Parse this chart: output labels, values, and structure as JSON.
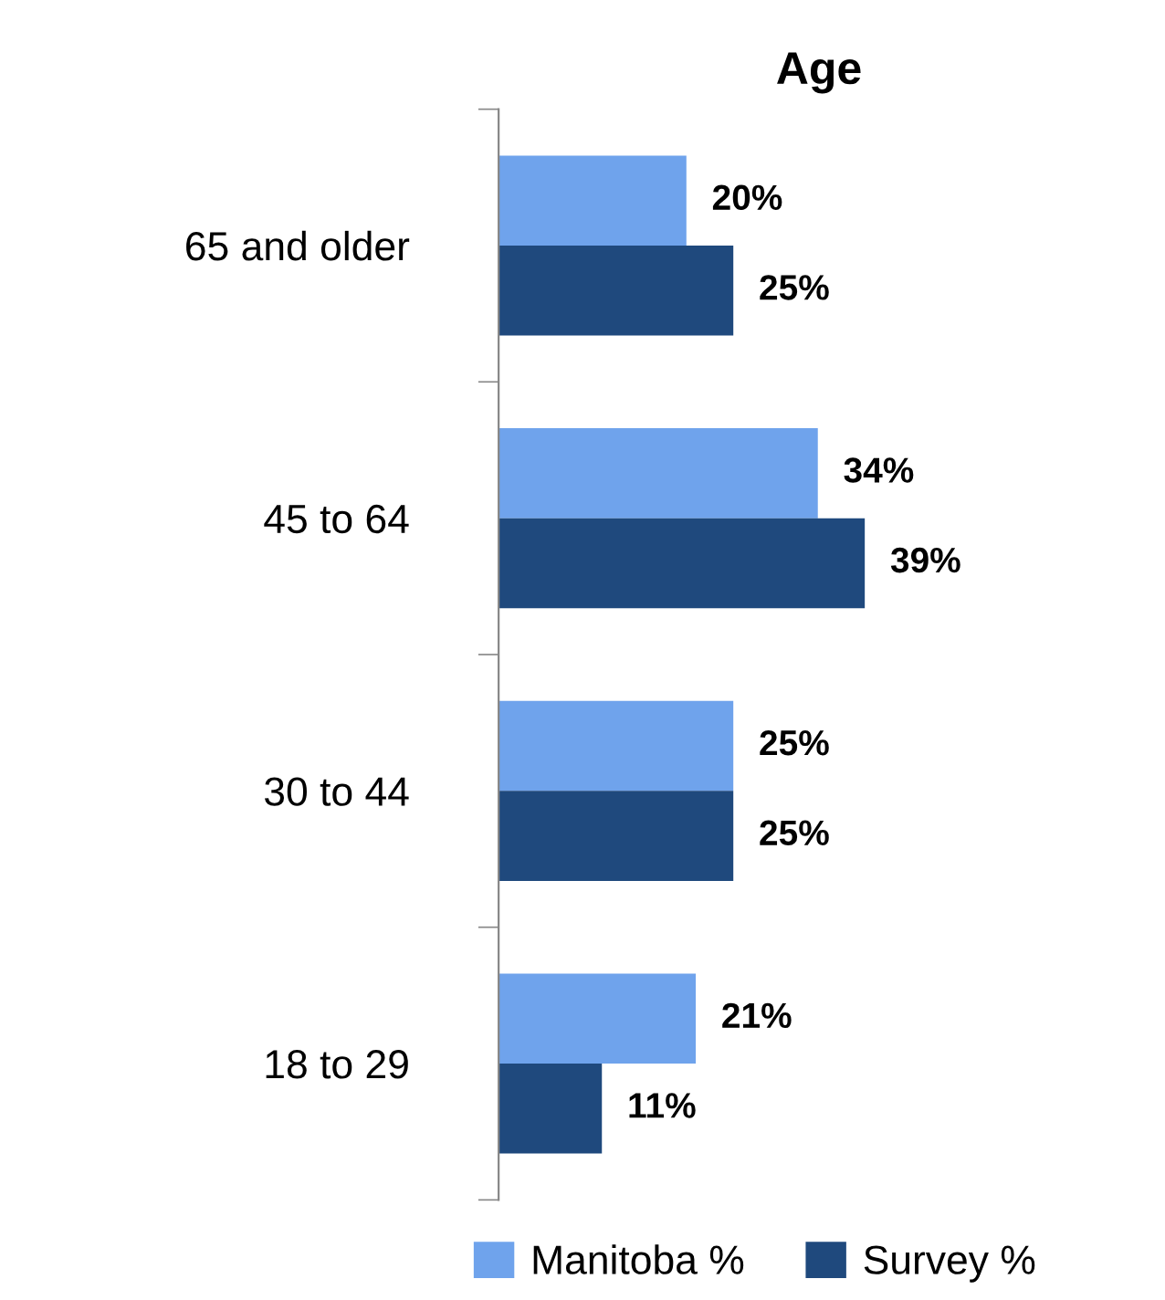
{
  "chart_data": {
    "type": "bar",
    "orientation": "horizontal",
    "title": "Age",
    "categories": [
      "65 and older",
      "45 to 64",
      "30 to 44",
      "18 to 29"
    ],
    "series": [
      {
        "name": "Manitoba %",
        "color": "#6fa3ec",
        "values": [
          20,
          34,
          25,
          21
        ],
        "value_labels": [
          "20%",
          "34%",
          "25%",
          "21%"
        ]
      },
      {
        "name": "Survey %",
        "color": "#1f497d",
        "values": [
          25,
          39,
          25,
          11
        ],
        "value_labels": [
          "25%",
          "39%",
          "25%",
          "11%"
        ]
      }
    ],
    "legend": "bottom",
    "grid": false
  }
}
